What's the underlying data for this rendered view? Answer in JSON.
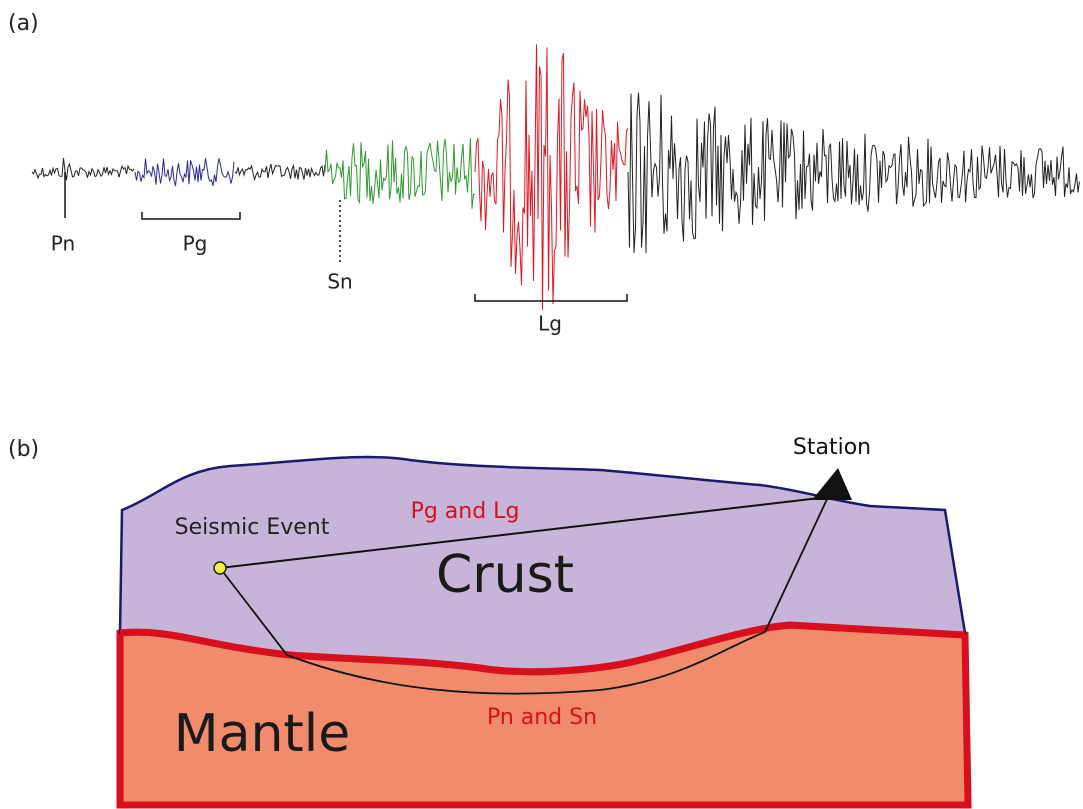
{
  "panel_a": {
    "label": "(a)",
    "phases": {
      "pn": "Pn",
      "pg": "Pg",
      "sn": "Sn",
      "lg": "Lg"
    }
  },
  "panel_b": {
    "label": "(b)",
    "station": "Station",
    "event": "Seismic Event",
    "upper_path": "Pg and Lg",
    "crust": "Crust",
    "mantle": "Mantle",
    "lower_path": "Pn and Sn"
  }
}
